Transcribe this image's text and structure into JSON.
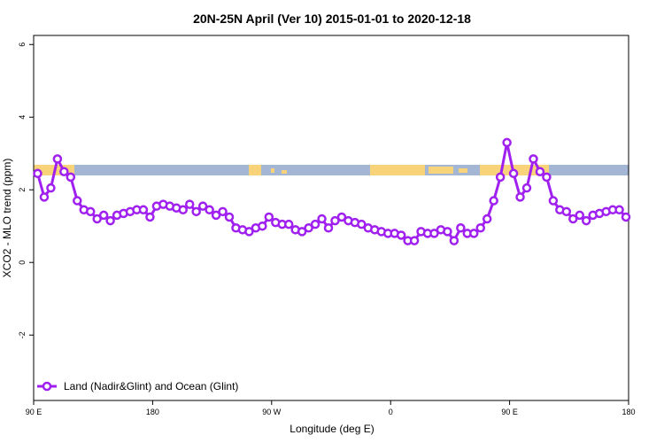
{
  "chart_data": {
    "type": "line",
    "title": "20N-25N April (Ver 10)   2015-01-01 to 2020-12-18",
    "x_label": "Longitude (deg E)",
    "y_label": "XCO2 - MLO trend (ppm)",
    "xlim": [
      90,
      540
    ],
    "ylim": [
      -3.8,
      6.25
    ],
    "xticks": [
      {
        "value": 90,
        "label": "90 E"
      },
      180,
      {
        "value": 270,
        "label": "90 W"
      },
      {
        "value": 360,
        "label": "0"
      },
      {
        "value": 450,
        "label": "90 E"
      },
      {
        "value": 540,
        "label": "180"
      }
    ],
    "yticks": [
      -2,
      0,
      2,
      4,
      6
    ],
    "legend": "bottomleft",
    "x": [
      93,
      98,
      103,
      108,
      113,
      118,
      123,
      128,
      133,
      138,
      143,
      148,
      153,
      158,
      163,
      168,
      173,
      178,
      183,
      188,
      193,
      198,
      203,
      208,
      213,
      218,
      223,
      228,
      233,
      238,
      243,
      248,
      253,
      258,
      263,
      268,
      273,
      278,
      283,
      288,
      293,
      298,
      303,
      308,
      313,
      318,
      323,
      328,
      333,
      338,
      343,
      348,
      353,
      358,
      363,
      368,
      373,
      378,
      383,
      388,
      393,
      398,
      403,
      408,
      413,
      418,
      423,
      428,
      433,
      438,
      443,
      448,
      453,
      458,
      463,
      468,
      473,
      478,
      483,
      488,
      493,
      498,
      503,
      508,
      513,
      518,
      523,
      528,
      533,
      538
    ],
    "series": [
      {
        "name": "Land (Nadir&Glint) and Ocean (Glint)",
        "color": "#a020f0",
        "values": [
          2.45,
          1.8,
          2.05,
          2.85,
          2.5,
          2.35,
          1.7,
          1.45,
          1.4,
          1.2,
          1.3,
          1.15,
          1.3,
          1.35,
          1.4,
          1.45,
          1.45,
          1.25,
          1.55,
          1.6,
          1.55,
          1.5,
          1.45,
          1.6,
          1.4,
          1.55,
          1.45,
          1.3,
          1.4,
          1.25,
          0.95,
          0.9,
          0.85,
          0.95,
          1.0,
          1.25,
          1.1,
          1.05,
          1.05,
          0.9,
          0.85,
          0.95,
          1.05,
          1.2,
          0.95,
          1.15,
          1.25,
          1.15,
          1.1,
          1.05,
          0.95,
          0.9,
          0.85,
          0.8,
          0.8,
          0.75,
          0.6,
          0.6,
          0.85,
          0.8,
          0.8,
          0.9,
          0.85,
          0.6,
          0.95,
          0.8,
          0.8,
          0.95,
          1.2,
          1.7,
          2.35,
          3.3,
          2.45,
          1.8,
          2.05,
          2.85,
          2.5,
          2.35,
          1.7,
          1.45,
          1.4,
          1.2,
          1.3,
          1.15,
          1.3,
          1.35,
          1.4,
          1.45,
          1.45,
          1.25
        ]
      }
    ]
  }
}
